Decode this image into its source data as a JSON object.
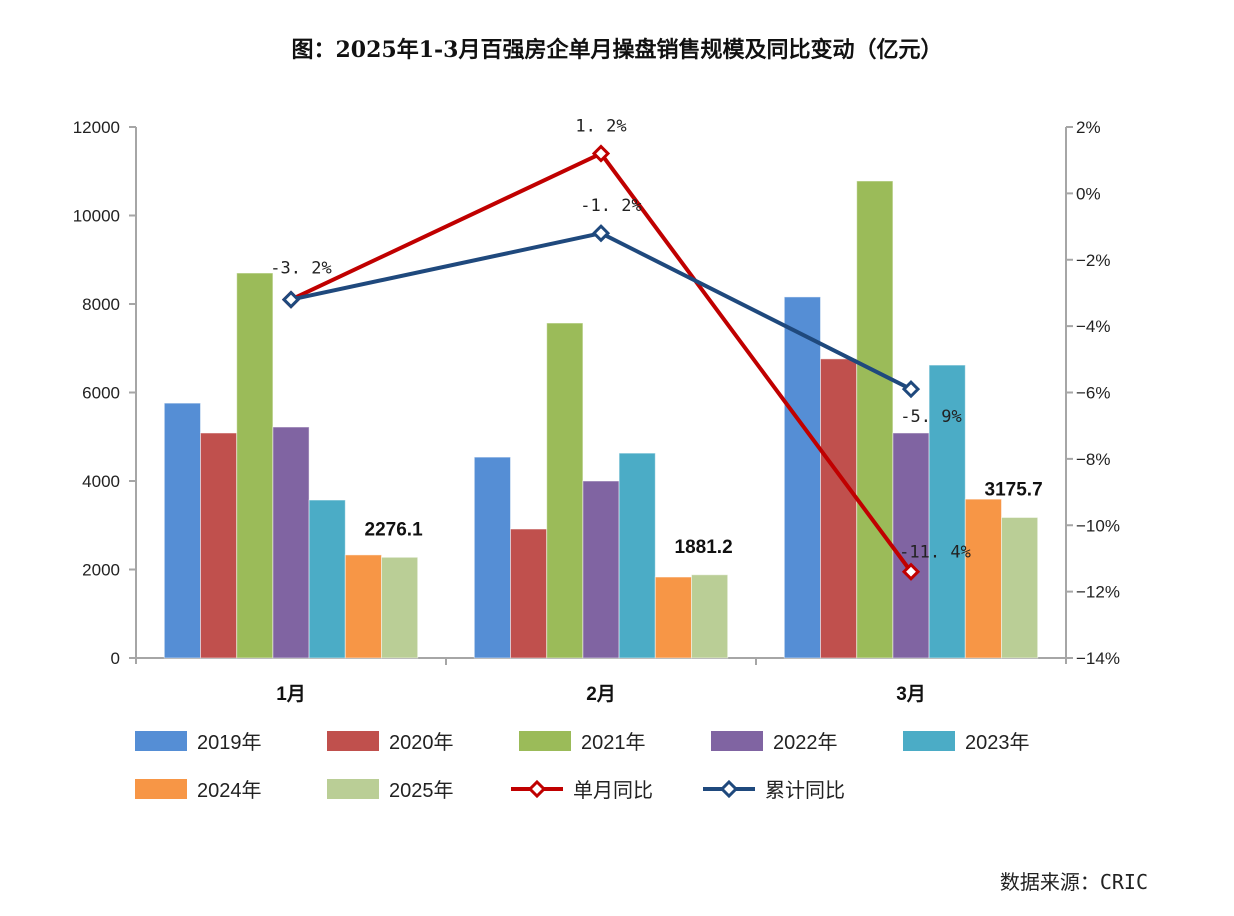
{
  "title": "图：2025年1-3月百强房企单月操盘销售规模及同比变动（亿元）",
  "source": "数据来源：CRIC",
  "chart_data": {
    "type": "bar",
    "title": "图：2025年1-3月百强房企单月操盘销售规模及同比变动（亿元）",
    "xlabel": "",
    "ylabel": "亿元",
    "categories": [
      "1月",
      "2月",
      "3月"
    ],
    "ylim": [
      0,
      12000
    ],
    "yticks": [
      "0",
      "2000",
      "4000",
      "6000",
      "8000",
      "10000",
      "12000"
    ],
    "y2lim": [
      -14,
      2
    ],
    "y2ticks": [
      "-14%",
      "-12%",
      "-10%",
      "-8%",
      "-6%",
      "-4%",
      "-2%",
      "0%",
      "2%"
    ],
    "grid": false,
    "legend_position": "bottom",
    "series": [
      {
        "name": "2019年",
        "type": "bar",
        "color": "#558ED5",
        "values": [
          5760,
          4540,
          8160
        ]
      },
      {
        "name": "2020年",
        "type": "bar",
        "color": "#C0504D",
        "values": [
          5085,
          2915,
          6760
        ]
      },
      {
        "name": "2021年",
        "type": "bar",
        "color": "#9BBB59",
        "values": [
          8700,
          7570,
          10780
        ]
      },
      {
        "name": "2022年",
        "type": "bar",
        "color": "#8064A2",
        "values": [
          5220,
          4000,
          5085
        ]
      },
      {
        "name": "2023年",
        "type": "bar",
        "color": "#4BACC6",
        "values": [
          3570,
          4630,
          6620
        ]
      },
      {
        "name": "2024年",
        "type": "bar",
        "color": "#F79646",
        "values": [
          2330,
          1830,
          3590
        ]
      },
      {
        "name": "2025年",
        "type": "bar",
        "color": "#BACE96",
        "values": [
          2276.1,
          1881.2,
          3175.7
        ],
        "data_labels": [
          "2276.1",
          "1881.2",
          "3175.7"
        ]
      },
      {
        "name": "单月同比",
        "type": "line",
        "axis": "right",
        "color": "#C00000",
        "values": [
          -3.2,
          1.2,
          -11.4
        ],
        "data_labels": [
          "",
          "1.2%",
          "-11.4%"
        ]
      },
      {
        "name": "累计同比",
        "type": "line",
        "axis": "right",
        "color": "#1F497D",
        "values": [
          -3.2,
          -1.2,
          -5.9
        ],
        "data_labels": [
          "-3.2%",
          "-1.2%",
          "-5.9%"
        ]
      }
    ]
  }
}
